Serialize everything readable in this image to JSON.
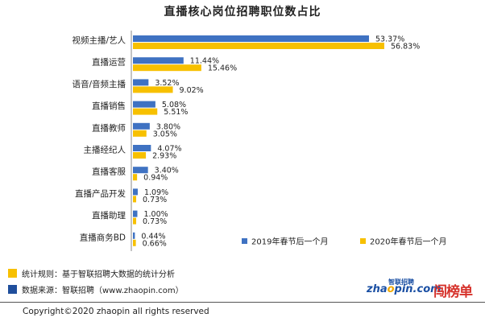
{
  "colors": {
    "series1": "#3f72c2",
    "series2": "#f7c000",
    "axis": "#888888"
  },
  "chart_data": {
    "type": "bar",
    "orientation": "horizontal",
    "title": "直播核心岗位招聘职位数占比",
    "categories": [
      "视频主播/艺人",
      "直播运营",
      "语音/音频主播",
      "直播销售",
      "直播教师",
      "主播经纪人",
      "直播客服",
      "直播产品开发",
      "直播助理",
      "直播商务BD"
    ],
    "series": [
      {
        "name": "2019年春节后一个月",
        "values": [
          53.37,
          11.44,
          3.52,
          5.08,
          3.8,
          4.07,
          3.4,
          1.09,
          1.0,
          0.44
        ],
        "labels": [
          "53.37%",
          "11.44%",
          "3.52%",
          "5.08%",
          "3.80%",
          "4.07%",
          "3.40%",
          "1.09%",
          "1.00%",
          "0.44%"
        ]
      },
      {
        "name": "2020年春节后一个月",
        "values": [
          56.83,
          15.46,
          9.02,
          5.51,
          3.05,
          2.93,
          0.94,
          0.73,
          0.73,
          0.66
        ],
        "labels": [
          "56.83%",
          "15.46%",
          "9.02%",
          "5.51%",
          "3.05%",
          "2.93%",
          "0.94%",
          "0.73%",
          "0.73%",
          "0.66%"
        ]
      }
    ],
    "xlim": [
      0,
      60
    ],
    "grid": false,
    "legend": "bottom-right"
  },
  "footer": {
    "rule": "统计规则：基于智联招聘大数据的统计分析",
    "source": "数据来源：智联招聘（www.zhaopin.com）",
    "copyright": "Copyright©2020 zhaopin all rights reserved"
  },
  "logos": {
    "zhaopin_small": "智联招聘",
    "zhaopin": "zhaopin.com",
    "brand": "闯榜单"
  }
}
